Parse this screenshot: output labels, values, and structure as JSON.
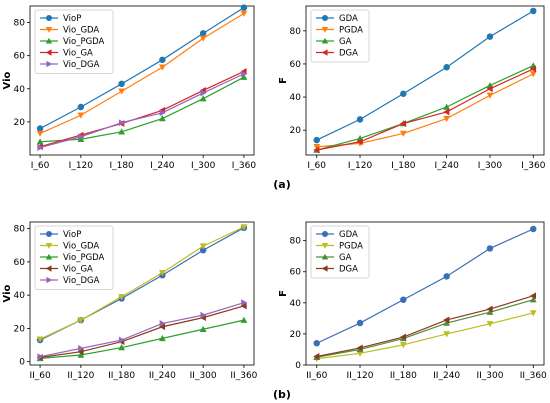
{
  "captions": [
    "(a)",
    "(b)"
  ],
  "chart_data": [
    {
      "type": "line",
      "categories": [
        "I_60",
        "I_120",
        "I_180",
        "I_240",
        "I_300",
        "I_360"
      ],
      "xlabel": "",
      "ylabel": "Vio",
      "ylim": [
        0,
        90
      ],
      "yticks": [
        20,
        40,
        60,
        80
      ],
      "grid": false,
      "legend": "top-left",
      "series": [
        {
          "name": "VioP",
          "color": "#1f77b4",
          "marker": "circle",
          "values": [
            16,
            29,
            43,
            57.5,
            73.5,
            89
          ]
        },
        {
          "name": "Vio_GDA",
          "color": "#ff7f0e",
          "marker": "tri-down",
          "values": [
            13,
            24,
            38.5,
            53,
            70.5,
            85.5
          ]
        },
        {
          "name": "Vio_PGDA",
          "color": "#2ca02c",
          "marker": "tri-up",
          "values": [
            8,
            9.5,
            14,
            22,
            34,
            47
          ]
        },
        {
          "name": "Vio_GA",
          "color": "#d62728",
          "marker": "tri-left",
          "values": [
            5,
            12,
            19,
            27,
            39,
            50.5
          ]
        },
        {
          "name": "Vio_DGA",
          "color": "#9467bd",
          "marker": "tri-right",
          "values": [
            4.5,
            11,
            19.5,
            25.5,
            37.5,
            49
          ]
        }
      ]
    },
    {
      "type": "line",
      "categories": [
        "I_60",
        "I_120",
        "I_180",
        "I_240",
        "I_300",
        "I_360"
      ],
      "xlabel": "",
      "ylabel": "F",
      "ylim": [
        5,
        95
      ],
      "yticks": [
        20,
        40,
        60,
        80
      ],
      "grid": false,
      "legend": "top-left",
      "series": [
        {
          "name": "GDA",
          "color": "#1f77b4",
          "marker": "circle",
          "values": [
            14,
            26.5,
            42,
            58,
            76.5,
            92
          ]
        },
        {
          "name": "PGDA",
          "color": "#ff7f0e",
          "marker": "tri-down",
          "values": [
            10,
            12,
            18,
            27,
            41,
            54
          ]
        },
        {
          "name": "GA",
          "color": "#2ca02c",
          "marker": "tri-up",
          "values": [
            8,
            15,
            24,
            34,
            47,
            59
          ]
        },
        {
          "name": "DGA",
          "color": "#d62728",
          "marker": "tri-left",
          "values": [
            8,
            13,
            24,
            31,
            45,
            57
          ]
        }
      ]
    },
    {
      "type": "line",
      "categories": [
        "II_60",
        "II_120",
        "II_180",
        "II_240",
        "II_300",
        "II_360"
      ],
      "xlabel": "",
      "ylabel": "Vio",
      "ylim": [
        -2,
        84
      ],
      "yticks": [
        0,
        20,
        40,
        60,
        80
      ],
      "grid": false,
      "legend": "top-left",
      "series": [
        {
          "name": "VioP",
          "color": "#3b6fb6",
          "marker": "circle",
          "values": [
            13,
            25,
            38,
            52,
            67,
            80.5
          ]
        },
        {
          "name": "Vio_GDA",
          "color": "#bcbd22",
          "marker": "tri-down",
          "values": [
            13.5,
            25,
            39,
            53.5,
            69.5,
            81
          ]
        },
        {
          "name": "Vio_PGDA",
          "color": "#2ca02c",
          "marker": "tri-up",
          "values": [
            2,
            4,
            8.5,
            14,
            19.5,
            25
          ]
        },
        {
          "name": "Vio_GA",
          "color": "#8c3a1f",
          "marker": "tri-left",
          "values": [
            2.5,
            6,
            12,
            21,
            26.5,
            33.5
          ]
        },
        {
          "name": "Vio_DGA",
          "color": "#9467bd",
          "marker": "tri-right",
          "values": [
            3,
            8,
            13,
            23,
            28,
            35.5
          ]
        }
      ]
    },
    {
      "type": "line",
      "categories": [
        "II_60",
        "II_120",
        "II_180",
        "II_240",
        "II_300",
        "II_360"
      ],
      "xlabel": "",
      "ylabel": "F",
      "ylim": [
        0,
        92
      ],
      "yticks": [
        0,
        20,
        40,
        60,
        80
      ],
      "grid": false,
      "legend": "top-left",
      "series": [
        {
          "name": "GDA",
          "color": "#3b6fb6",
          "marker": "circle",
          "values": [
            14,
            27,
            42,
            57,
            75,
            87.5
          ]
        },
        {
          "name": "PGDA",
          "color": "#bcbd22",
          "marker": "tri-down",
          "values": [
            4,
            7.5,
            13,
            20,
            26.5,
            33.5
          ]
        },
        {
          "name": "GA",
          "color": "#4e8c3a",
          "marker": "tri-up",
          "values": [
            5,
            10,
            17,
            27,
            34,
            42
          ]
        },
        {
          "name": "DGA",
          "color": "#8c3a1f",
          "marker": "tri-left",
          "values": [
            5.5,
            11,
            18,
            29,
            36,
            44.5
          ]
        }
      ]
    }
  ]
}
